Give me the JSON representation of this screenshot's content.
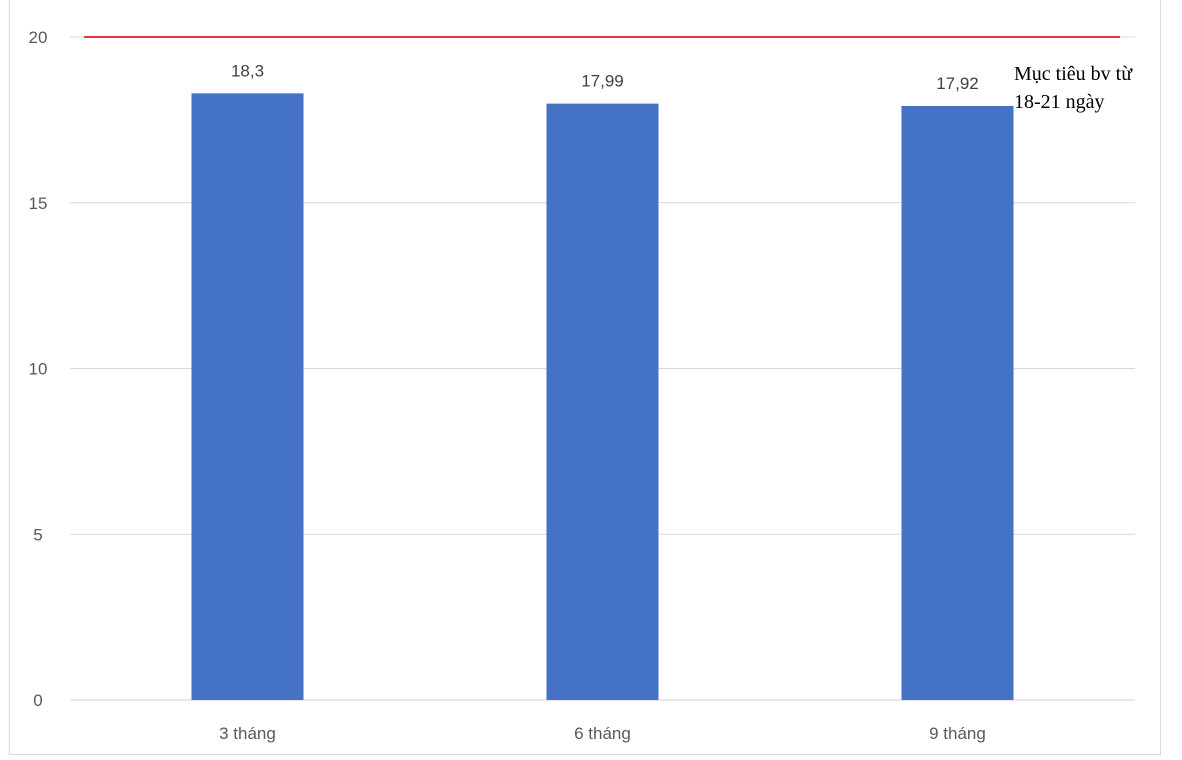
{
  "chart_data": {
    "type": "bar",
    "title": "",
    "xlabel": "",
    "ylabel": "",
    "categories": [
      "3 tháng",
      "6 tháng",
      "9 tháng"
    ],
    "values": [
      18.3,
      17.99,
      17.92
    ],
    "value_labels": [
      "18,3",
      "17,99",
      "17,92"
    ],
    "ylim": [
      0,
      20
    ],
    "yticks": [
      0,
      5,
      10,
      15,
      20
    ],
    "grid": true,
    "legend": "none",
    "bar_color": "#4472c4",
    "target_line": {
      "value": 20,
      "color": "#e03c3c",
      "annotation_lines": [
        "Mục tiêu bv từ",
        "18-21 ngày"
      ]
    }
  }
}
